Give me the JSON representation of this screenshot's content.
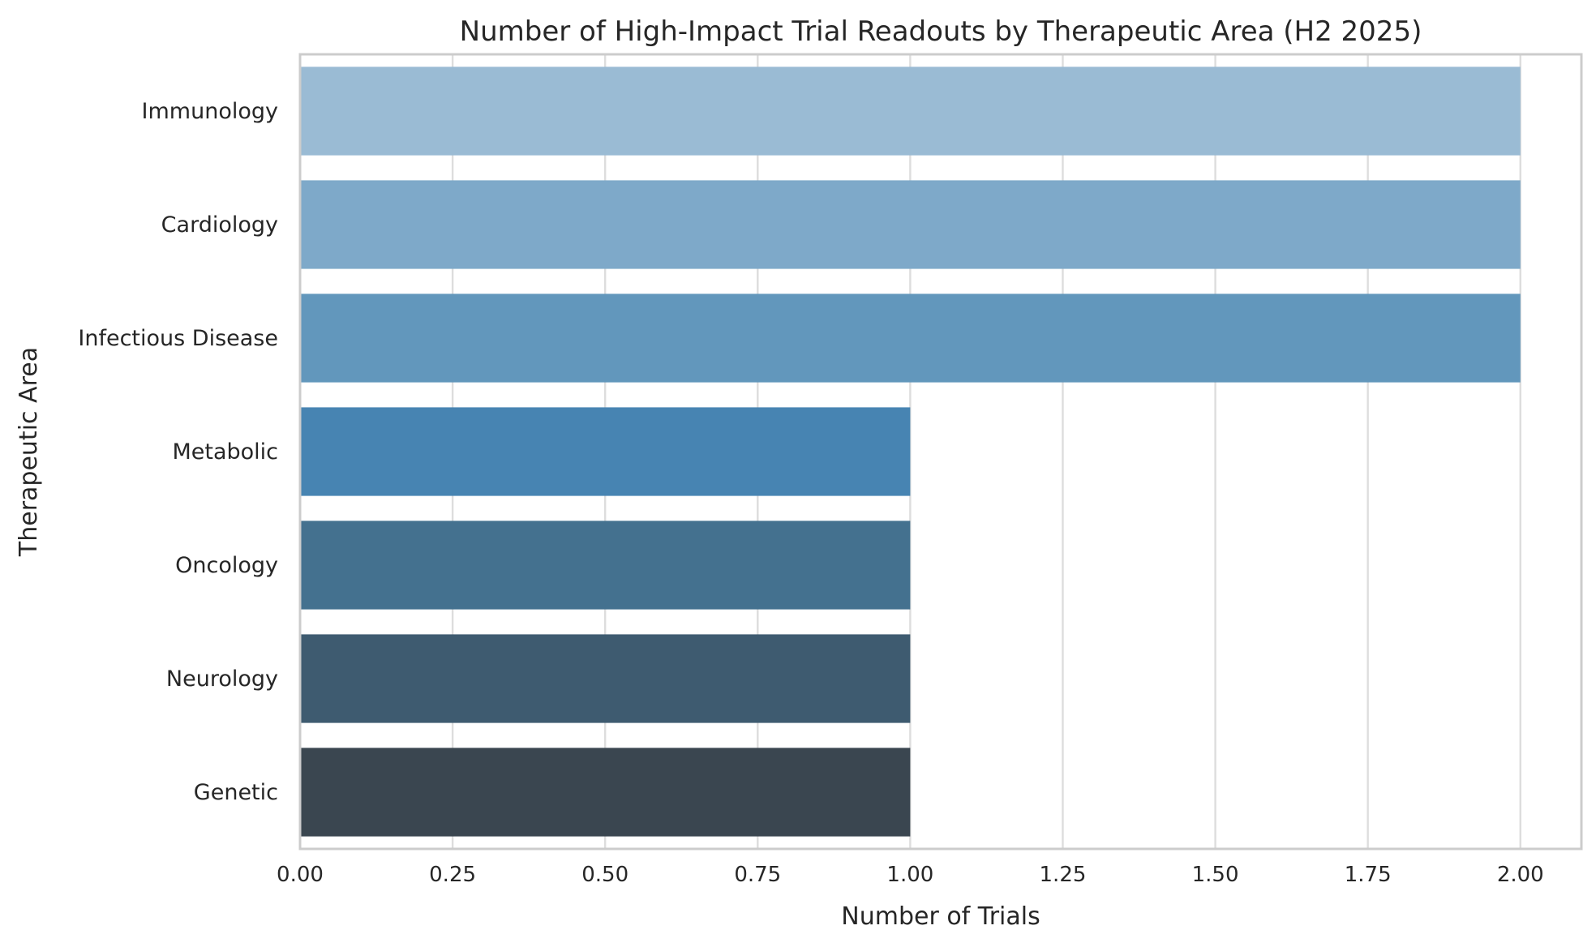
{
  "chart_data": {
    "type": "bar",
    "orientation": "horizontal",
    "title": "Number of High-Impact Trial Readouts by Therapeutic Area (H2 2025)",
    "xlabel": "Number of Trials",
    "ylabel": "Therapeutic Area",
    "categories": [
      "Immunology",
      "Cardiology",
      "Infectious Disease",
      "Metabolic",
      "Oncology",
      "Neurology",
      "Genetic"
    ],
    "values": [
      2,
      2,
      2,
      1,
      1,
      1,
      1
    ],
    "colors": [
      "#9abbd4",
      "#7ea9c9",
      "#6297bc",
      "#4784b2",
      "#44718f",
      "#3e5b70",
      "#3a4650"
    ],
    "xlim": [
      0,
      2.1
    ],
    "xticks": [
      0.0,
      0.25,
      0.5,
      0.75,
      1.0,
      1.25,
      1.5,
      1.75,
      2.0
    ],
    "xtick_labels": [
      "0.00",
      "0.25",
      "0.50",
      "0.75",
      "1.00",
      "1.25",
      "1.50",
      "1.75",
      "2.00"
    ],
    "grid": "vertical",
    "legend": "none"
  }
}
